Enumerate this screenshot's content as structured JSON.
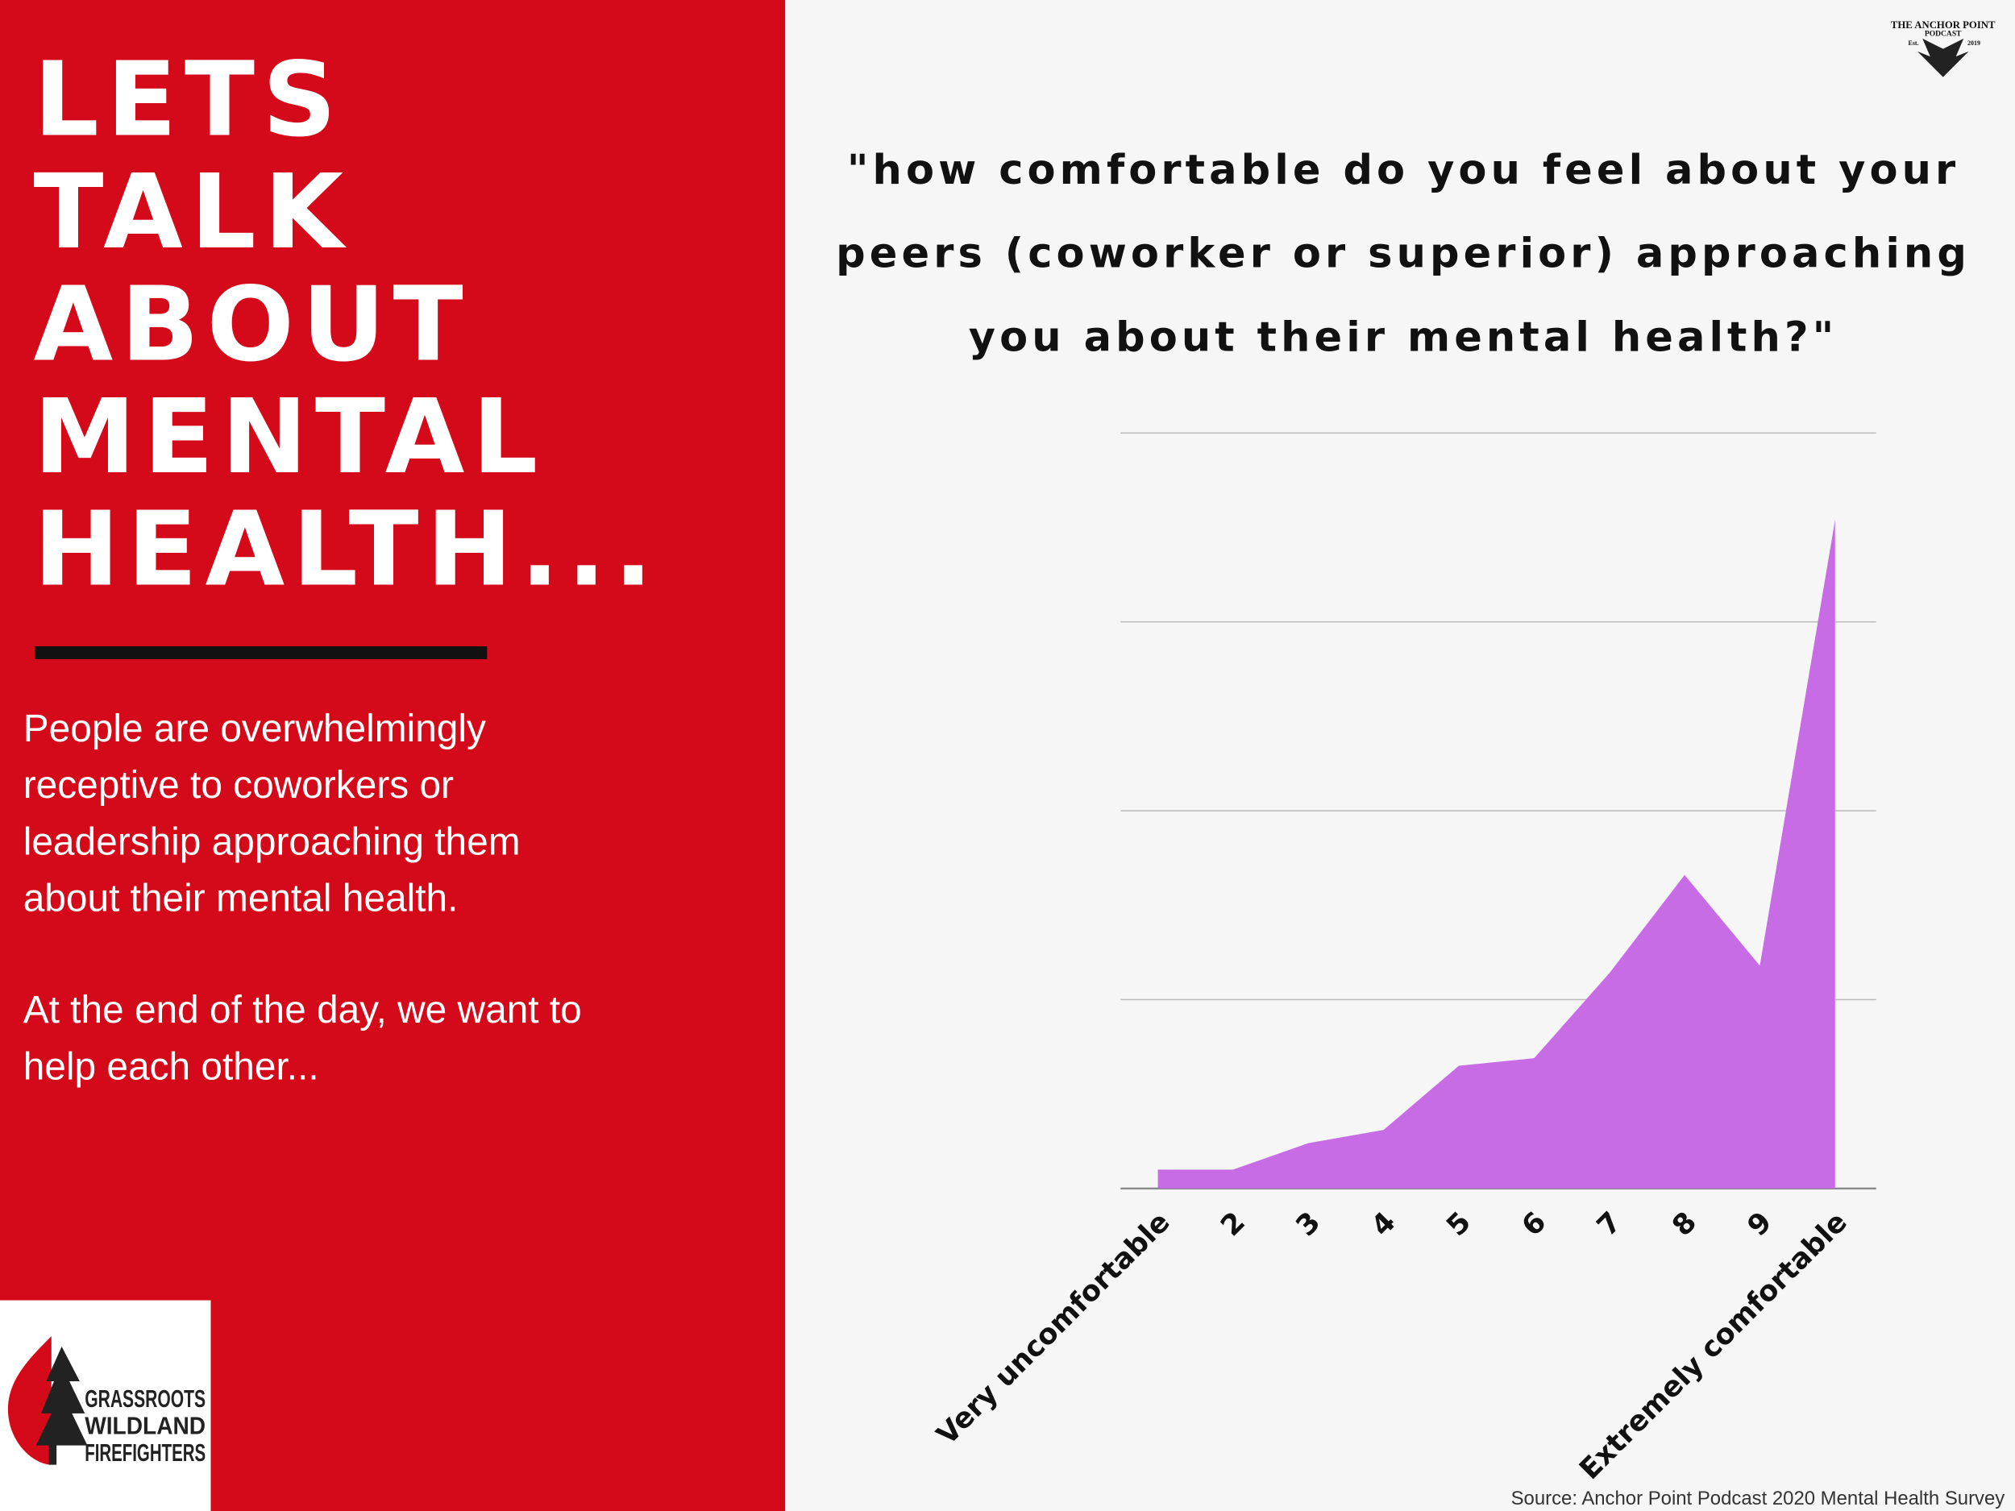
{
  "left_panel": {
    "title_lines": [
      "LETS",
      "TALK",
      "ABOUT",
      "MENTAL",
      "HEALTH..."
    ],
    "paragraphs": [
      [
        "People are overwhelmingly",
        "receptive to coworkers or",
        "leadership approaching  them",
        "about their mental health."
      ],
      [
        "At the end of the day, we want to",
        "help each other..."
      ]
    ]
  },
  "logos": {
    "grassroots": [
      "GRASSROOTS",
      "WILDLAND",
      "FIREFIGHTERS"
    ],
    "anchor_point": [
      "THE ANCHOR POINT",
      "PODCAST",
      "Est.",
      "2019"
    ]
  },
  "chart_data": {
    "type": "area",
    "title_lines": [
      "\"how comfortable do you feel about your",
      "peers (coworker or superior) approaching",
      "you about their mental health?\""
    ],
    "categories": [
      "Very uncomfortable",
      "2",
      "3",
      "4",
      "5",
      "6",
      "7",
      "8",
      "9",
      "Extremely comfortable"
    ],
    "values": [
      0.1,
      0.1,
      0.24,
      0.31,
      0.65,
      0.69,
      1.14,
      1.66,
      1.18,
      3.54
    ],
    "color": "#c86ce6",
    "ylim": [
      0,
      4
    ],
    "yticks": [
      0,
      1,
      2,
      3,
      4
    ],
    "y_tick_labels": false,
    "grid": true
  },
  "source": "Source: Anchor Point Podcast 2020 Mental Health Survey"
}
